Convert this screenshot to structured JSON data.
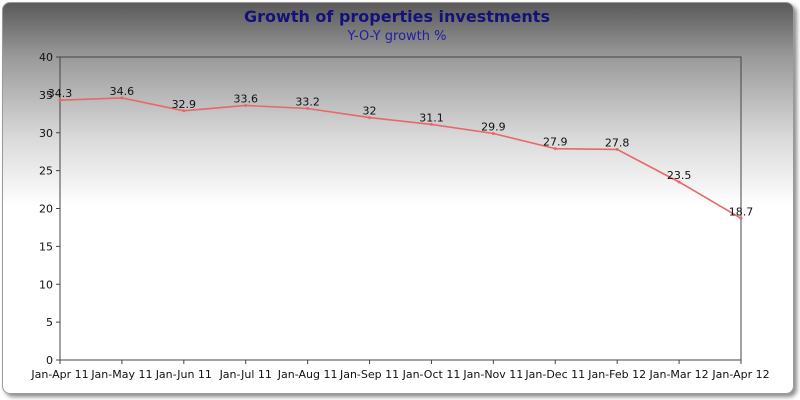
{
  "chart_data": {
    "type": "line",
    "title": "Growth of properties investments",
    "subtitle": "Y-O-Y growth %",
    "xlabel": "",
    "ylabel": "",
    "categories": [
      "Jan-Apr 11",
      "Jan-May 11",
      "Jan-Jun 11",
      "Jan-Jul 11",
      "Jan-Aug 11",
      "Jan-Sep 11",
      "Jan-Oct 11",
      "Jan-Nov 11",
      "Jan-Dec 11",
      "Jan-Feb 12",
      "Jan-Mar 12",
      "Jan-Apr 12"
    ],
    "series": [
      {
        "values": [
          34.3,
          34.6,
          32.9,
          33.6,
          33.2,
          32,
          31.1,
          29.9,
          27.9,
          27.8,
          23.5,
          18.7
        ],
        "labels": [
          "34.3",
          "34.6",
          "32.9",
          "33.6",
          "33.2",
          "32",
          "31.1",
          "29.9",
          "27.9",
          "27.8",
          "23.5",
          "18.7"
        ],
        "color": "#e86868"
      }
    ],
    "ylim": [
      0,
      40
    ],
    "yticks": [
      "0",
      "5",
      "10",
      "15",
      "20",
      "25",
      "30",
      "35",
      "40"
    ],
    "grid": false,
    "legend": "none"
  }
}
